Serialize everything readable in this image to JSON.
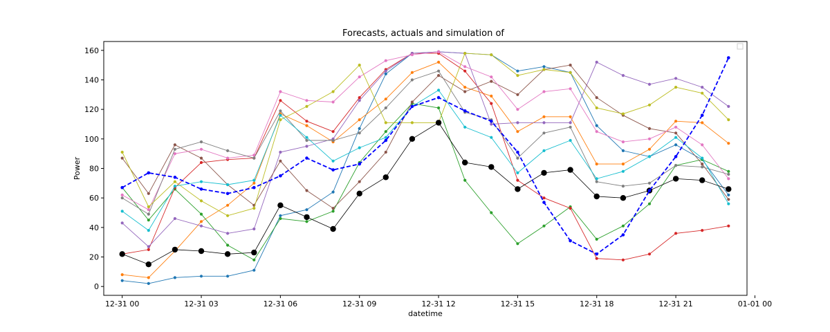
{
  "chart_data": {
    "type": "line",
    "title": "Forecasts, actuals and simulation of",
    "xlabel": "datetime",
    "ylabel": "Power",
    "xlim": [
      -0.7,
      23.7
    ],
    "ylim": [
      -6,
      166
    ],
    "x": [
      "12-31 00",
      "12-31 01",
      "12-31 02",
      "12-31 03",
      "12-31 04",
      "12-31 05",
      "12-31 06",
      "12-31 07",
      "12-31 08",
      "12-31 09",
      "12-31 10",
      "12-31 11",
      "12-31 12",
      "12-31 13",
      "12-31 14",
      "12-31 15",
      "12-31 16",
      "12-31 17",
      "12-31 18",
      "12-31 19",
      "12-31 20",
      "12-31 21",
      "12-31 22",
      "12-31 23"
    ],
    "x_ticks": [
      {
        "pos": 0,
        "label": "12-31 00"
      },
      {
        "pos": 3,
        "label": "12-31 03"
      },
      {
        "pos": 6,
        "label": "12-31 06"
      },
      {
        "pos": 9,
        "label": "12-31 09"
      },
      {
        "pos": 12,
        "label": "12-31 12"
      },
      {
        "pos": 15,
        "label": "12-31 15"
      },
      {
        "pos": 18,
        "label": "12-31 18"
      },
      {
        "pos": 21,
        "label": "12-31 21"
      },
      {
        "pos": 24,
        "label": "01-01 00"
      }
    ],
    "y_ticks": [
      0,
      20,
      40,
      60,
      80,
      100,
      120,
      140,
      160
    ],
    "legend": "top-right (empty)",
    "grid": false,
    "forecasts": [
      {
        "color": "#1f77b4",
        "values": [
          4,
          2,
          6,
          7,
          7,
          11,
          48,
          52,
          64,
          107,
          144,
          158,
          159,
          158,
          157,
          146,
          149,
          145,
          109,
          92,
          88,
          96,
          86,
          62
        ]
      },
      {
        "color": "#ff7f0e",
        "values": [
          8,
          6,
          24,
          44,
          55,
          70,
          117,
          109,
          98,
          113,
          127,
          145,
          152,
          135,
          129,
          105,
          115,
          115,
          83,
          83,
          93,
          112,
          111,
          97
        ]
      },
      {
        "color": "#2ca02c",
        "values": [
          67,
          45,
          66,
          49,
          28,
          18,
          46,
          44,
          51,
          84,
          105,
          124,
          121,
          72,
          50,
          29,
          41,
          54,
          32,
          41,
          56,
          82,
          86,
          78
        ]
      },
      {
        "color": "#d62728",
        "values": [
          22,
          25,
          67,
          84,
          86,
          87,
          126,
          112,
          105,
          128,
          147,
          158,
          158,
          146,
          124,
          72,
          60,
          53,
          19,
          18,
          22,
          36,
          38,
          41
        ]
      },
      {
        "color": "#9467bd",
        "values": [
          43,
          27,
          46,
          41,
          36,
          39,
          91,
          95,
          100,
          126,
          146,
          158,
          159,
          158,
          110,
          111,
          111,
          111,
          152,
          143,
          137,
          141,
          135,
          122
        ]
      },
      {
        "color": "#8c564b",
        "values": [
          87,
          63,
          96,
          87,
          69,
          55,
          85,
          65,
          53,
          71,
          91,
          125,
          143,
          132,
          139,
          130,
          147,
          150,
          128,
          116,
          107,
          104,
          83,
          59
        ]
      },
      {
        "color": "#e377c2",
        "values": [
          62,
          52,
          90,
          93,
          87,
          89,
          132,
          126,
          125,
          142,
          153,
          157,
          159,
          149,
          142,
          120,
          132,
          134,
          105,
          98,
          100,
          108,
          96,
          73
        ]
      },
      {
        "color": "#7f7f7f",
        "values": [
          60,
          49,
          93,
          98,
          92,
          87,
          119,
          99,
          99,
          104,
          121,
          140,
          146,
          118,
          113,
          87,
          104,
          108,
          71,
          68,
          70,
          82,
          81,
          76
        ]
      },
      {
        "color": "#bcbd22",
        "values": [
          91,
          54,
          71,
          58,
          48,
          53,
          113,
          122,
          132,
          150,
          111,
          111,
          111,
          158,
          157,
          143,
          147,
          145,
          121,
          117,
          123,
          135,
          131,
          113
        ]
      },
      {
        "color": "#17becf",
        "values": [
          51,
          38,
          68,
          71,
          69,
          72,
          116,
          101,
          85,
          94,
          101,
          122,
          133,
          108,
          101,
          77,
          92,
          99,
          73,
          78,
          88,
          101,
          87,
          56
        ]
      }
    ],
    "actuals": {
      "color": "#000000",
      "values": [
        22,
        15,
        25,
        24,
        22,
        23,
        55,
        47,
        39,
        63,
        74,
        100,
        111,
        84,
        81,
        66,
        77,
        79,
        61,
        60,
        65,
        73,
        72,
        66
      ]
    },
    "simulation": {
      "color": "#0000ff",
      "values": [
        67,
        77,
        74,
        66,
        63,
        67,
        75,
        87,
        79,
        83,
        99,
        122,
        128,
        119,
        112,
        91,
        57,
        31,
        22,
        35,
        65,
        88,
        116,
        155
      ]
    }
  }
}
